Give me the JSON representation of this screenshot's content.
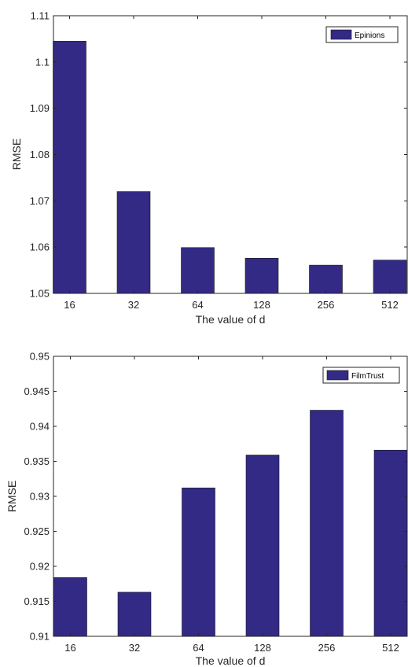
{
  "chart_data": [
    {
      "type": "bar",
      "categories": [
        "16",
        "32",
        "64",
        "128",
        "256",
        "512"
      ],
      "series": [
        {
          "name": "Epinions",
          "values": [
            1.1045,
            1.072,
            1.0599,
            1.0576,
            1.0561,
            1.0572
          ]
        }
      ],
      "xlabel": "The value of d",
      "ylabel": "RMSE",
      "ylim": [
        1.05,
        1.11
      ],
      "yticks": [
        1.05,
        1.06,
        1.07,
        1.08,
        1.09,
        1.1,
        1.11
      ],
      "ytick_labels": [
        "1.05",
        "1.06",
        "1.07",
        "1.08",
        "1.09",
        "1.1",
        "1.11"
      ],
      "legend_position": "top-right",
      "grid": false,
      "bar_color": "#332a86"
    },
    {
      "type": "bar",
      "categories": [
        "16",
        "32",
        "64",
        "128",
        "256",
        "512"
      ],
      "series": [
        {
          "name": "FilmTrust",
          "values": [
            0.9184,
            0.9163,
            0.9312,
            0.9359,
            0.9423,
            0.9366
          ]
        }
      ],
      "xlabel": "The value of d",
      "ylabel": "RMSE",
      "ylim": [
        0.91,
        0.95
      ],
      "yticks": [
        0.91,
        0.915,
        0.92,
        0.925,
        0.93,
        0.935,
        0.94,
        0.945,
        0.95
      ],
      "ytick_labels": [
        "0.91",
        "0.915",
        "0.92",
        "0.925",
        "0.93",
        "0.935",
        "0.94",
        "0.945",
        "0.95"
      ],
      "legend_position": "top-right",
      "grid": false,
      "bar_color": "#332a86"
    }
  ]
}
